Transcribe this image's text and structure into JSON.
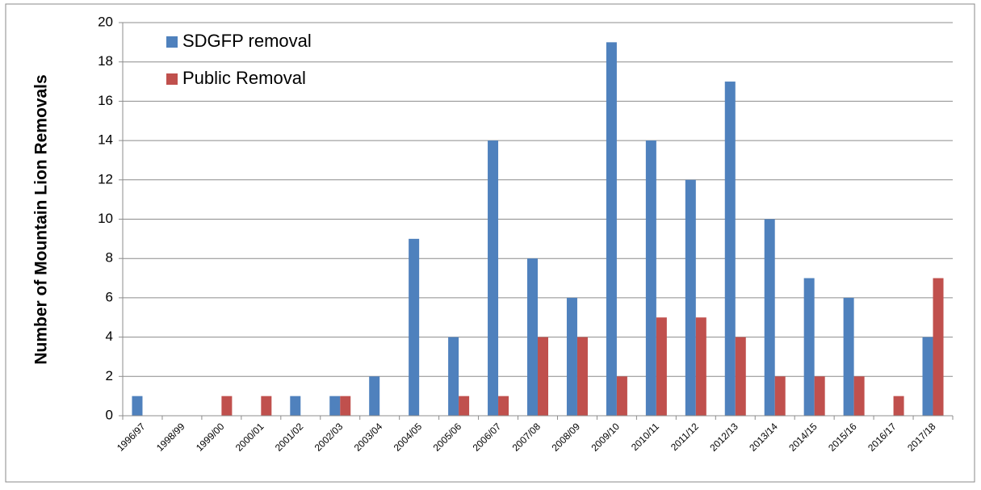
{
  "chart_data": {
    "type": "bar",
    "y_label": "Number of Mountain Lion Removals",
    "categories": [
      "1996/97",
      "1998/99",
      "1999/00",
      "2000/01",
      "2001/02",
      "2002/03",
      "2003/04",
      "2004/05",
      "2005/06",
      "2006/07",
      "2007/08",
      "2008/09",
      "2009/10",
      "2010/11",
      "2011/12",
      "2012/13",
      "2013/14",
      "2014/15",
      "2015/16",
      "2016/17",
      "2017/18"
    ],
    "series": [
      {
        "name": "SDGFP removal",
        "color": "#4f81bd",
        "values": [
          1,
          0,
          0,
          0,
          1,
          1,
          2,
          9,
          4,
          14,
          8,
          6,
          19,
          14,
          12,
          17,
          10,
          7,
          6,
          0,
          4
        ]
      },
      {
        "name": "Public Removal",
        "color": "#c0504d",
        "values": [
          0,
          0,
          1,
          1,
          0,
          1,
          0,
          0,
          1,
          1,
          4,
          4,
          2,
          5,
          5,
          4,
          2,
          2,
          2,
          1,
          7
        ]
      }
    ],
    "ylim": [
      0,
      20
    ],
    "yticks": [
      0,
      2,
      4,
      6,
      8,
      10,
      12,
      14,
      16,
      18,
      20
    ],
    "grid": true,
    "legend": "top-left"
  }
}
